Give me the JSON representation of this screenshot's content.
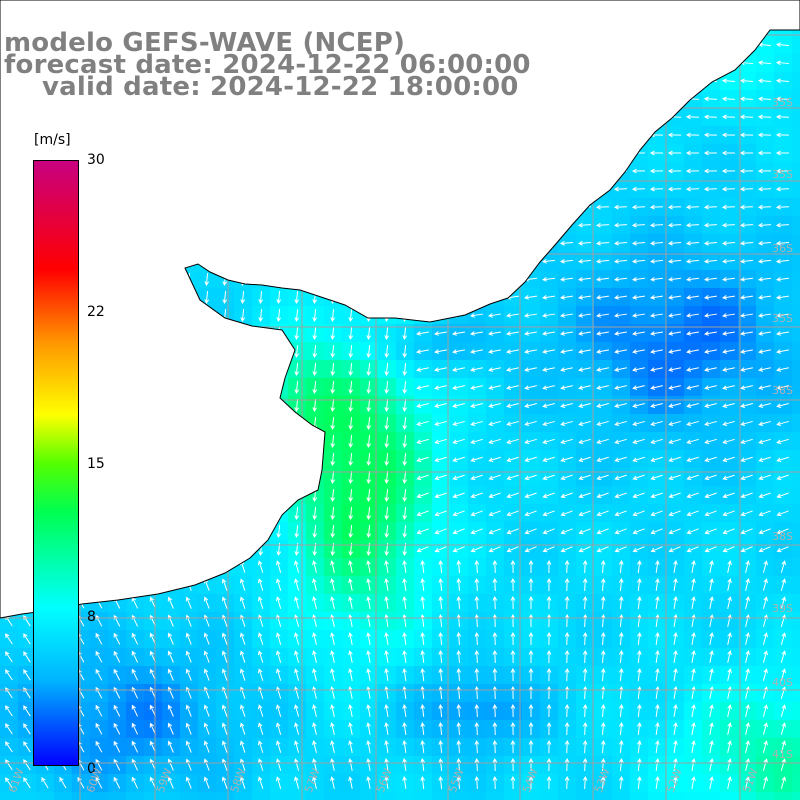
{
  "title": {
    "line1": "modelo GEFS-WAVE (NCEP)",
    "line2": "forecast date: 2024-12-22 06:00:00",
    "line3": "valid date: 2024-12-22 18:00:00"
  },
  "colorbar": {
    "unit": "[m/s]",
    "ticks": [
      "30",
      "22",
      "15",
      "8",
      "0"
    ],
    "tick_values": [
      30,
      22,
      15,
      8,
      0
    ],
    "range": [
      0,
      30
    ],
    "colors": [
      "#0000ff",
      "#00b4ff",
      "#00ffff",
      "#00ff50",
      "#55ff00",
      "#ffff00",
      "#ff9600",
      "#ff0000",
      "#c80080"
    ]
  },
  "grid": {
    "lat_labels": [
      "35S",
      "35S",
      "36S",
      "35S",
      "38S",
      "38S",
      "39S",
      "40S",
      "41S"
    ],
    "lon_labels": [
      "61W",
      "60W",
      "59W",
      "58W",
      "57W",
      "56W",
      "55W",
      "54W",
      "53W",
      "52W",
      "51W"
    ]
  },
  "map": {
    "land_color": "#ffffff",
    "coast_color": "#000000",
    "arrow_color": "#ffffff",
    "grid_color": "#a0a0a0"
  }
}
